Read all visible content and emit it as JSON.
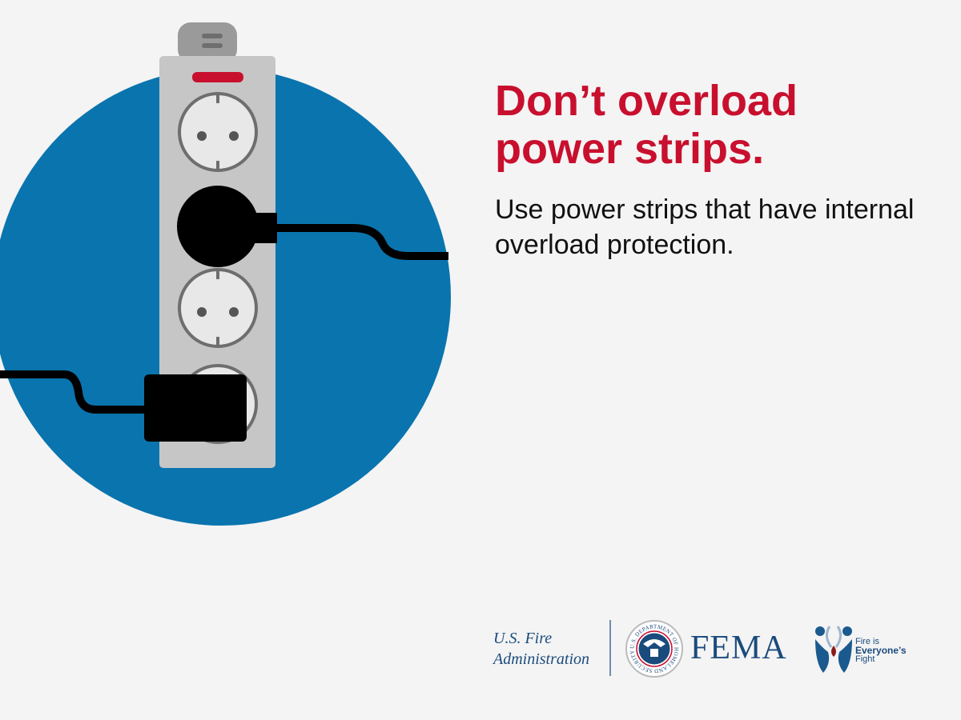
{
  "headline": "Don’t overload power strips.",
  "subtext": "Use power strips that have internal overload protection.",
  "footer": {
    "usfa_line1": "U.S. Fire",
    "usfa_line2": "Administration",
    "dhs_seal_text": "U.S. DEPARTMENT OF HOMELAND SECURITY",
    "fema": "FEMA",
    "campaign_line1": "Fire is",
    "campaign_line2": "Everyone’s",
    "campaign_line3": "Fight"
  },
  "colors": {
    "headline": "#c8102e",
    "circle": "#0a74ae",
    "strip": "#c6c6c7",
    "background": "#f4f4f4",
    "logo_blue": "#1a4b7d"
  },
  "icons": [
    "power-strip-illustration",
    "dhs-seal-icon",
    "fire-is-everyones-fight-icon"
  ]
}
